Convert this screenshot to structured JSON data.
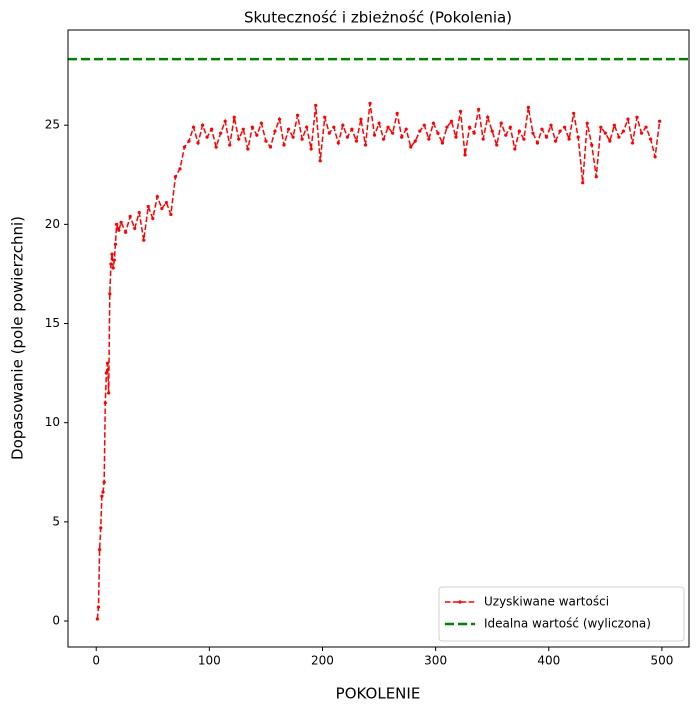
{
  "chart_data": {
    "type": "line",
    "title": "Skuteczność i zbieżność (Pokolenia)",
    "x_label": "POKOLENIE",
    "y_label": "Dopasowanie (pole powierzchni)",
    "xlim": [
      -24.95,
      523.95
    ],
    "ylim": [
      -1.31,
      29.8
    ],
    "xticks": [
      0,
      100,
      200,
      300,
      400,
      500
    ],
    "yticks": [
      0,
      5,
      10,
      15,
      20,
      25
    ],
    "grid": false,
    "legend": "lower right",
    "series": [
      {
        "name": "Uzyskiwane wartości",
        "color": "#ff0000",
        "x": [
          1,
          2,
          3,
          4,
          5,
          6,
          7,
          8,
          9,
          10,
          11,
          12,
          13,
          14,
          15,
          16,
          17,
          18,
          19,
          20,
          22,
          26,
          30,
          34,
          38,
          42,
          46,
          50,
          54,
          58,
          62,
          66,
          70,
          74,
          78,
          82,
          86,
          90,
          94,
          98,
          102,
          106,
          110,
          114,
          118,
          122,
          126,
          130,
          134,
          138,
          142,
          146,
          150,
          154,
          158,
          162,
          166,
          170,
          174,
          178,
          182,
          186,
          190,
          194,
          198,
          202,
          206,
          210,
          214,
          218,
          222,
          226,
          230,
          234,
          238,
          242,
          246,
          250,
          254,
          258,
          262,
          266,
          270,
          274,
          278,
          282,
          286,
          290,
          294,
          298,
          302,
          306,
          310,
          314,
          318,
          322,
          326,
          330,
          334,
          338,
          342,
          346,
          350,
          354,
          358,
          362,
          366,
          370,
          374,
          378,
          382,
          386,
          390,
          394,
          398,
          402,
          406,
          410,
          414,
          418,
          422,
          426,
          430,
          434,
          438,
          442,
          446,
          450,
          454,
          458,
          462,
          466,
          470,
          474,
          478,
          482,
          486,
          490,
          494,
          498
        ],
        "values": [
          0.1,
          0.7,
          3.6,
          4.7,
          6.3,
          6.5,
          7.0,
          11.0,
          12.5,
          13.0,
          11.5,
          16.5,
          18.0,
          18.5,
          17.8,
          18.2,
          19.0,
          20.0,
          19.8,
          19.7,
          20.1,
          19.6,
          20.4,
          19.8,
          20.6,
          19.2,
          20.9,
          20.3,
          21.4,
          20.8,
          21.1,
          20.5,
          22.4,
          22.8,
          23.9,
          24.2,
          24.9,
          24.1,
          25.0,
          24.4,
          24.8,
          23.9,
          24.6,
          25.2,
          24.0,
          25.4,
          24.3,
          24.8,
          23.8,
          24.9,
          24.5,
          25.1,
          24.2,
          23.9,
          24.7,
          25.3,
          24.0,
          24.8,
          24.4,
          25.5,
          24.3,
          24.9,
          23.8,
          26.0,
          23.2,
          25.4,
          24.6,
          24.9,
          24.1,
          25.0,
          24.4,
          24.8,
          24.2,
          25.3,
          24.0,
          26.1,
          24.5,
          25.1,
          24.3,
          24.9,
          24.6,
          25.6,
          24.4,
          24.8,
          23.9,
          24.2,
          24.7,
          25.0,
          24.3,
          25.1,
          24.6,
          24.1,
          24.9,
          25.2,
          24.4,
          25.7,
          23.5,
          24.9,
          24.6,
          25.8,
          24.3,
          25.4,
          24.7,
          24.0,
          25.1,
          24.5,
          24.9,
          23.8,
          24.7,
          24.3,
          25.9,
          24.6,
          24.1,
          24.8,
          24.4,
          25.0,
          24.2,
          24.7,
          24.9,
          24.3,
          25.6,
          24.4,
          22.1,
          25.1,
          24.0,
          22.4,
          24.9,
          24.6,
          24.2,
          25.0,
          24.4,
          24.7,
          25.3,
          24.1,
          25.4,
          24.6,
          24.9,
          24.3,
          23.4,
          25.2
        ]
      }
    ],
    "hlines": [
      {
        "name": "Idealna wartość (wyliczona)",
        "color": "#008000",
        "value": 28.33
      }
    ]
  }
}
